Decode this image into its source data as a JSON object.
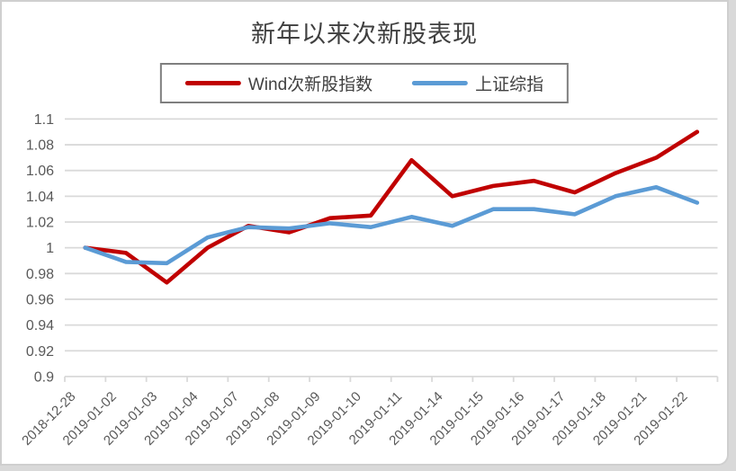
{
  "chart_data": {
    "type": "line",
    "title": "新年以来次新股表现",
    "categories": [
      "2018-12-28",
      "2019-01-02",
      "2019-01-03",
      "2019-01-04",
      "2019-01-07",
      "2019-01-08",
      "2019-01-09",
      "2019-01-10",
      "2019-01-11",
      "2019-01-14",
      "2019-01-15",
      "2019-01-16",
      "2019-01-17",
      "2019-01-18",
      "2019-01-21",
      "2019-01-22"
    ],
    "series": [
      {
        "name": "Wind次新股指数",
        "color": "#C00000",
        "values": [
          1.0,
          0.996,
          0.973,
          1.0,
          1.017,
          1.012,
          1.023,
          1.025,
          1.068,
          1.04,
          1.048,
          1.052,
          1.043,
          1.058,
          1.07,
          1.09
        ]
      },
      {
        "name": "上证综指",
        "color": "#5B9BD5",
        "values": [
          1.0,
          0.989,
          0.988,
          1.008,
          1.016,
          1.015,
          1.019,
          1.016,
          1.024,
          1.017,
          1.03,
          1.03,
          1.026,
          1.04,
          1.047,
          1.035
        ]
      }
    ],
    "ylim": [
      0.9,
      1.1
    ],
    "ytick_step": 0.02,
    "ytick_labels": [
      "0.9",
      "0.92",
      "0.94",
      "0.96",
      "0.98",
      "1",
      "1.02",
      "1.04",
      "1.06",
      "1.08",
      "1.1"
    ],
    "grid": true,
    "legend_position": "top",
    "x_label_rotation": -45
  },
  "colors": {
    "grid": "#d9d9d9",
    "axis_text": "#595959",
    "title_text": "#404040",
    "legend_border": "#7f7f7f",
    "legend_text": "#404040",
    "frame_border": "#cfcfcf"
  }
}
